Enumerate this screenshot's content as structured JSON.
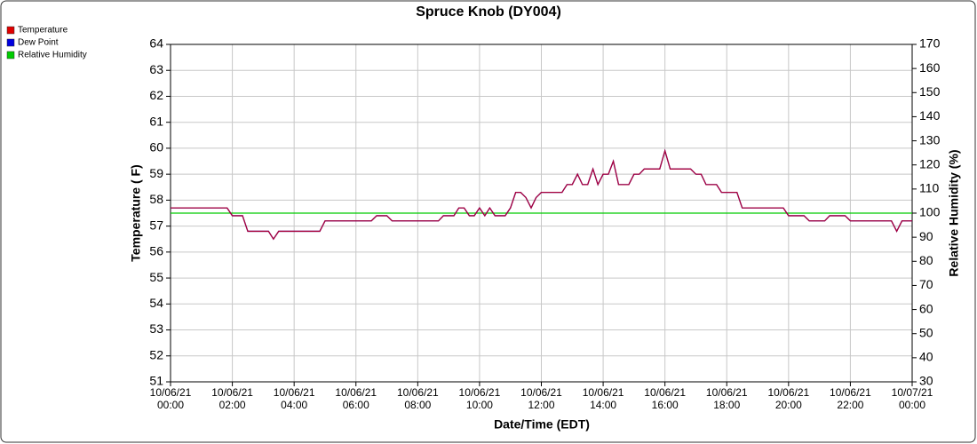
{
  "chart_data": {
    "type": "line",
    "title": "Spruce Knob (DY004)",
    "xlabel": "Date/Time (EDT)",
    "ylabel": "Temperature ( F)",
    "y2label": "Relative Humidity (%)",
    "x": [
      0,
      1.83,
      2,
      2.33,
      2.5,
      3.17,
      3.33,
      3.5,
      4.83,
      5,
      6.5,
      6.67,
      7,
      7.17,
      8.67,
      8.83,
      9.17,
      9.33,
      9.5,
      9.67,
      9.83,
      10,
      10.17,
      10.33,
      10.5,
      10.83,
      11,
      11.17,
      11.33,
      11.5,
      11.67,
      11.83,
      12,
      12.67,
      12.83,
      13,
      13.17,
      13.33,
      13.5,
      13.67,
      13.83,
      14,
      14.17,
      14.33,
      14.5,
      14.83,
      15,
      15.17,
      15.33,
      15.83,
      16,
      16.17,
      16.83,
      17,
      17.17,
      17.33,
      17.67,
      17.83,
      18.33,
      18.5,
      19.83,
      20,
      20.5,
      20.67,
      21.17,
      21.33,
      21.83,
      22,
      23.33,
      23.5,
      23.67,
      24
    ],
    "series": [
      {
        "name": "Temperature",
        "color": "#e00000",
        "values": [
          57.7,
          57.7,
          57.4,
          57.4,
          56.8,
          56.8,
          56.5,
          56.8,
          56.8,
          57.2,
          57.2,
          57.4,
          57.4,
          57.2,
          57.2,
          57.4,
          57.4,
          57.7,
          57.7,
          57.4,
          57.4,
          57.7,
          57.4,
          57.7,
          57.4,
          57.4,
          57.7,
          58.3,
          58.3,
          58.1,
          57.7,
          58.1,
          58.3,
          58.3,
          58.6,
          58.6,
          59.0,
          58.6,
          58.6,
          59.2,
          58.6,
          59.0,
          59.0,
          59.5,
          58.6,
          58.6,
          59.0,
          59.0,
          59.2,
          59.2,
          59.9,
          59.2,
          59.2,
          59.0,
          59.0,
          58.6,
          58.6,
          58.3,
          58.3,
          57.7,
          57.7,
          57.4,
          57.4,
          57.2,
          57.2,
          57.4,
          57.4,
          57.2,
          57.2,
          56.8,
          57.2,
          57.2
        ]
      },
      {
        "name": "Dew Point",
        "color": "#0000e0",
        "values": [
          57.7,
          57.7,
          57.4,
          57.4,
          56.8,
          56.8,
          56.5,
          56.8,
          56.8,
          57.2,
          57.2,
          57.4,
          57.4,
          57.2,
          57.2,
          57.4,
          57.4,
          57.7,
          57.7,
          57.4,
          57.4,
          57.7,
          57.4,
          57.7,
          57.4,
          57.4,
          57.7,
          58.3,
          58.3,
          58.1,
          57.7,
          58.1,
          58.3,
          58.3,
          58.6,
          58.6,
          59.0,
          58.6,
          58.6,
          59.2,
          58.6,
          59.0,
          59.0,
          59.5,
          58.6,
          58.6,
          59.0,
          59.0,
          59.2,
          59.2,
          59.9,
          59.2,
          59.2,
          59.0,
          59.0,
          58.6,
          58.6,
          58.3,
          58.3,
          57.7,
          57.7,
          57.4,
          57.4,
          57.2,
          57.2,
          57.4,
          57.4,
          57.2,
          57.2,
          56.8,
          57.2,
          57.2
        ]
      },
      {
        "name": "Relative Humidity",
        "color": "#00cc00",
        "axis": "y2",
        "x": [
          0,
          24
        ],
        "values": [
          100,
          100
        ]
      }
    ],
    "xlim": [
      0,
      24
    ],
    "xticks": [
      {
        "value": 0,
        "label": "10/06/21 00:00"
      },
      {
        "value": 2,
        "label": "10/06/21 02:00"
      },
      {
        "value": 4,
        "label": "10/06/21 04:00"
      },
      {
        "value": 6,
        "label": "10/06/21 06:00"
      },
      {
        "value": 8,
        "label": "10/06/21 08:00"
      },
      {
        "value": 10,
        "label": "10/06/21 10:00"
      },
      {
        "value": 12,
        "label": "10/06/21 12:00"
      },
      {
        "value": 14,
        "label": "10/06/21 14:00"
      },
      {
        "value": 16,
        "label": "10/06/21 16:00"
      },
      {
        "value": 18,
        "label": "10/06/21 18:00"
      },
      {
        "value": 20,
        "label": "10/06/21 20:00"
      },
      {
        "value": 22,
        "label": "10/06/21 22:00"
      },
      {
        "value": 24,
        "label": "10/07/21 00:00"
      }
    ],
    "ylim": [
      51,
      64
    ],
    "yticks": [
      51,
      52,
      53,
      54,
      55,
      56,
      57,
      58,
      59,
      60,
      61,
      62,
      63,
      64
    ],
    "y2lim": [
      30,
      170
    ],
    "y2ticks": [
      30,
      40,
      50,
      60,
      70,
      80,
      90,
      100,
      110,
      120,
      130,
      140,
      150,
      160,
      170
    ],
    "grid": true,
    "legend": "top-left"
  }
}
